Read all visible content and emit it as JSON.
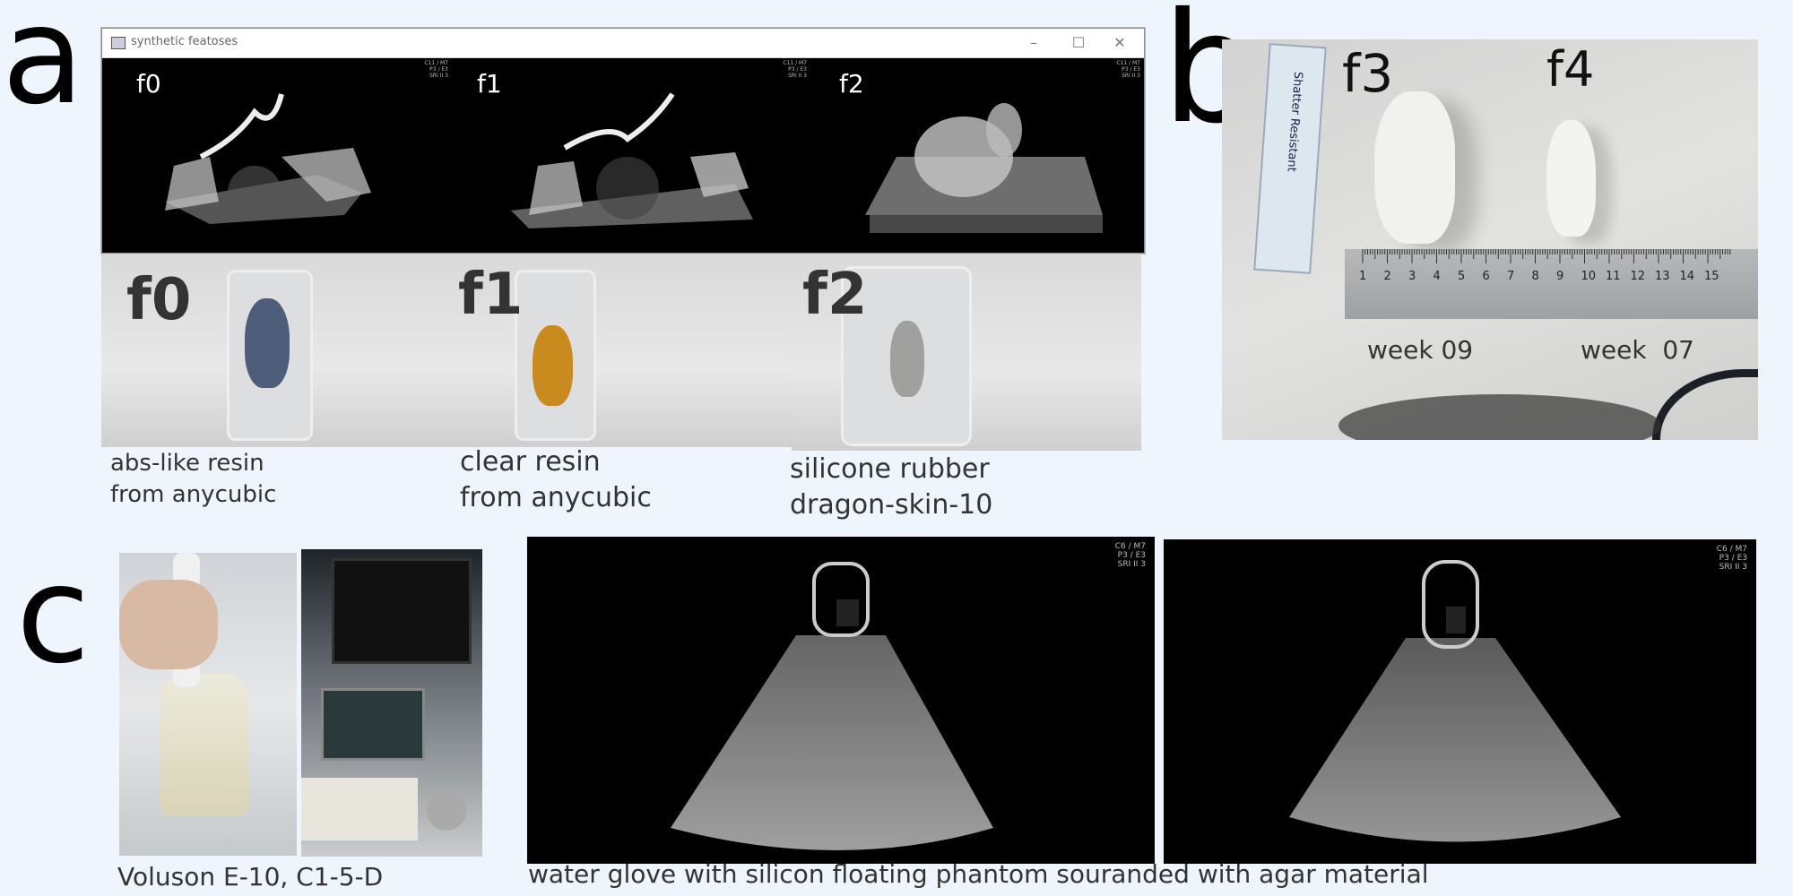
{
  "panels": {
    "a": "a",
    "b": "b",
    "c": "c"
  },
  "window": {
    "title": "synthetic featoses",
    "icon": "app-window-icon",
    "controls": [
      "minimize-icon",
      "maximize-icon",
      "close-icon"
    ],
    "frames": [
      {
        "label": "f0",
        "meta": "C11 / M7\nP3 / E3\nSRI II 3"
      },
      {
        "label": "f1",
        "meta": "C11 / M7\nP3 / E3\nSRI II 3"
      },
      {
        "label": "f2",
        "meta": "C11 / M7\nP3 / E3\nSRI II 3"
      }
    ]
  },
  "phantom_photos": [
    {
      "label": "f0",
      "color": "#4d5d7a"
    },
    {
      "label": "f1",
      "color": "#c98a1e"
    },
    {
      "label": "f2",
      "color": "#8c8c8a"
    }
  ],
  "materials": [
    "abs-like resin\nfrom anycubic",
    "clear resin\nfrom anycubic",
    "silicone rubber\ndragon-skin-10"
  ],
  "panel_b": {
    "labels": [
      "f3",
      "f4"
    ],
    "weeks": [
      "week 09",
      "week  07"
    ],
    "ruler_numbers": [
      "1",
      "2",
      "3",
      "4",
      "5",
      "6",
      "7",
      "8",
      "9",
      "10",
      "11",
      "12",
      "13",
      "14",
      "15"
    ],
    "small_ruler_text": "Shatter Resistant"
  },
  "panel_c": {
    "device_caption": "Voluson E-10, C1-5-D",
    "phantom_caption": "water glove with silicon floating phantom souranded with agar material",
    "scan_meta": [
      "C6 / M7\nP3 / E3\nSRI II 3",
      "C6 / M7\nP3 / E3\nSRI II 3"
    ]
  }
}
